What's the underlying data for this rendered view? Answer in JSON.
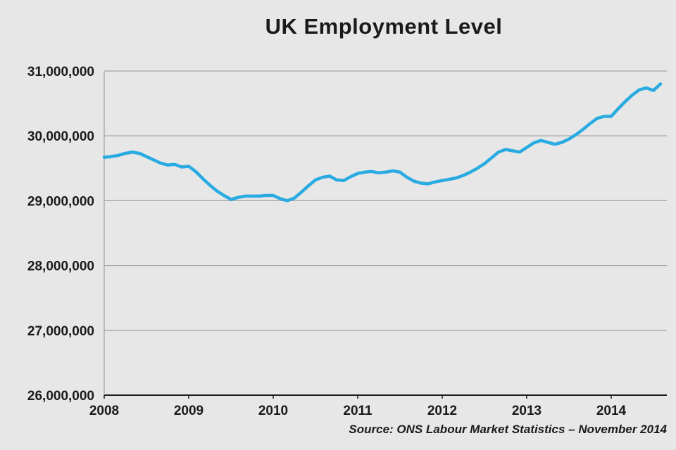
{
  "page": {
    "title": "UK Employment Level",
    "source_note": "Source: ONS Labour Market Statistics – November 2014"
  },
  "colors": {
    "background": "#e7e7e7",
    "line": "#29abe2",
    "gridline": "#a6a6a6",
    "axis": "#000000",
    "text": "#1a1a1a"
  },
  "chart_data": {
    "type": "line",
    "title": "UK Employment Level",
    "xlabel": "",
    "ylabel": "",
    "source": "Source: ONS Labour Market Statistics – November 2014",
    "legend": "none",
    "grid": "horizontal",
    "ylim": [
      26000000,
      31000000
    ],
    "xlim": [
      2008,
      2014.67
    ],
    "y_ticks": [
      26000000,
      27000000,
      28000000,
      29000000,
      30000000,
      31000000
    ],
    "x_ticks": [
      2008,
      2009,
      2010,
      2011,
      2012,
      2013,
      2014
    ],
    "series": [
      {
        "name": "UK employment level",
        "x": [
          2008.0,
          2008.083,
          2008.167,
          2008.25,
          2008.333,
          2008.417,
          2008.5,
          2008.583,
          2008.667,
          2008.75,
          2008.833,
          2008.917,
          2009.0,
          2009.083,
          2009.167,
          2009.25,
          2009.333,
          2009.417,
          2009.5,
          2009.583,
          2009.667,
          2009.75,
          2009.833,
          2009.917,
          2010.0,
          2010.083,
          2010.167,
          2010.25,
          2010.333,
          2010.417,
          2010.5,
          2010.583,
          2010.667,
          2010.75,
          2010.833,
          2010.917,
          2011.0,
          2011.083,
          2011.167,
          2011.25,
          2011.333,
          2011.417,
          2011.5,
          2011.583,
          2011.667,
          2011.75,
          2011.833,
          2011.917,
          2012.0,
          2012.083,
          2012.167,
          2012.25,
          2012.333,
          2012.417,
          2012.5,
          2012.583,
          2012.667,
          2012.75,
          2012.833,
          2012.917,
          2013.0,
          2013.083,
          2013.167,
          2013.25,
          2013.333,
          2013.417,
          2013.5,
          2013.583,
          2013.667,
          2013.75,
          2013.833,
          2013.917,
          2014.0,
          2014.083,
          2014.167,
          2014.25,
          2014.333,
          2014.417,
          2014.5,
          2014.583
        ],
        "values": [
          29670000,
          29680000,
          29700000,
          29730000,
          29750000,
          29730000,
          29680000,
          29630000,
          29580000,
          29550000,
          29560000,
          29520000,
          29530000,
          29450000,
          29340000,
          29240000,
          29150000,
          29080000,
          29020000,
          29050000,
          29070000,
          29070000,
          29070000,
          29080000,
          29080000,
          29030000,
          29000000,
          29040000,
          29130000,
          29230000,
          29320000,
          29360000,
          29380000,
          29320000,
          29310000,
          29370000,
          29420000,
          29440000,
          29450000,
          29430000,
          29440000,
          29460000,
          29440000,
          29360000,
          29300000,
          29270000,
          29260000,
          29290000,
          29310000,
          29330000,
          29350000,
          29390000,
          29440000,
          29500000,
          29570000,
          29660000,
          29750000,
          29790000,
          29770000,
          29750000,
          29820000,
          29890000,
          29930000,
          29900000,
          29870000,
          29900000,
          29950000,
          30020000,
          30100000,
          30190000,
          30270000,
          30300000,
          30300000,
          30420000,
          30530000,
          30630000,
          30710000,
          30740000,
          30700000,
          30800000
        ]
      }
    ]
  }
}
